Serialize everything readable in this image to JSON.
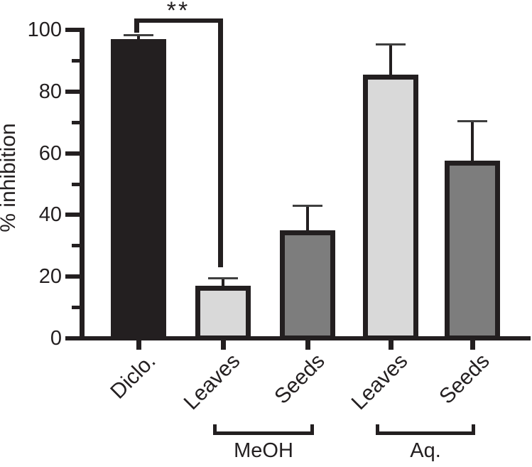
{
  "figure": {
    "colors": {
      "ink": "#231f20",
      "light_gray_bar": "#d9d9d9",
      "dark_gray_bar": "#7d7d7d",
      "error_cap": "#3f3f3f",
      "background": "#ffffff"
    }
  },
  "chart_data": {
    "type": "bar",
    "title": "",
    "xlabel": "",
    "ylabel": "% inhibition",
    "ylim": [
      0,
      100
    ],
    "y_major_ticks": [
      0,
      20,
      40,
      60,
      80,
      100
    ],
    "y_minor_ticks": [
      10,
      30,
      50,
      70,
      90
    ],
    "grid": false,
    "legend": "none",
    "categories": [
      "Diclo.",
      "Leaves",
      "Seeds",
      "Leaves",
      "Seeds"
    ],
    "values": [
      97,
      17,
      35,
      85.5,
      57.5
    ],
    "errors_plus": [
      1.5,
      2.5,
      8,
      10,
      13
    ],
    "bar_colors": [
      "#231f20",
      "#d9d9d9",
      "#7d7d7d",
      "#d9d9d9",
      "#7d7d7d"
    ],
    "groups": [
      {
        "label": "MeOH",
        "bars": [
          1,
          2
        ]
      },
      {
        "label": "Aq.",
        "bars": [
          3,
          4
        ]
      }
    ],
    "significance": [
      {
        "label": "**",
        "between": [
          "Diclo.",
          "Leaves"
        ]
      }
    ]
  }
}
